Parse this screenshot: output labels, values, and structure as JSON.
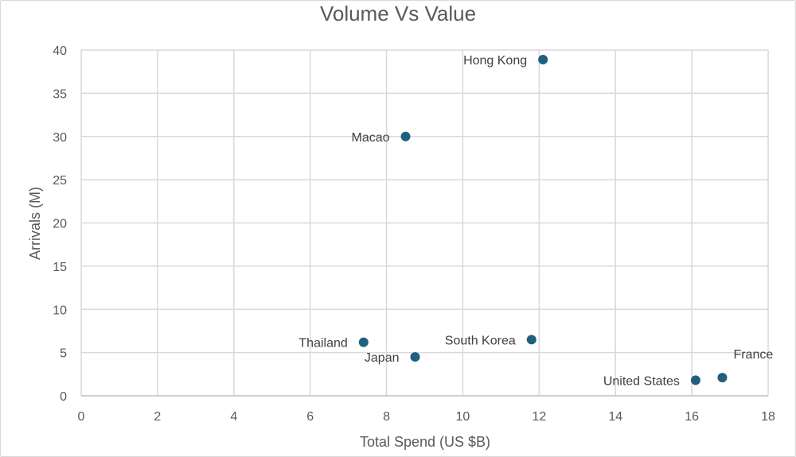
{
  "chart_data": {
    "type": "scatter",
    "title": "Volume Vs Value",
    "xlabel": "Total Spend (US $B)",
    "ylabel": "Arrivals (M)",
    "xlim": [
      0,
      18
    ],
    "ylim": [
      0,
      40
    ],
    "x_ticks": [
      0,
      2,
      4,
      6,
      8,
      10,
      12,
      14,
      16,
      18
    ],
    "y_ticks": [
      0,
      5,
      10,
      15,
      20,
      25,
      30,
      35,
      40
    ],
    "grid": true,
    "marker_color": "#1f5f7f",
    "points": [
      {
        "label": "Hong Kong",
        "x": 12.1,
        "y": 38.9,
        "label_pos": "left"
      },
      {
        "label": "Macao",
        "x": 8.5,
        "y": 30.0,
        "label_pos": "left"
      },
      {
        "label": "Thailand",
        "x": 7.4,
        "y": 6.2,
        "label_pos": "left"
      },
      {
        "label": "Japan",
        "x": 8.75,
        "y": 4.5,
        "label_pos": "left"
      },
      {
        "label": "South Korea",
        "x": 11.8,
        "y": 6.5,
        "label_pos": "left"
      },
      {
        "label": "United States",
        "x": 16.1,
        "y": 1.8,
        "label_pos": "left"
      },
      {
        "label": "France",
        "x": 16.8,
        "y": 2.1,
        "label_pos": "above-right"
      }
    ]
  }
}
